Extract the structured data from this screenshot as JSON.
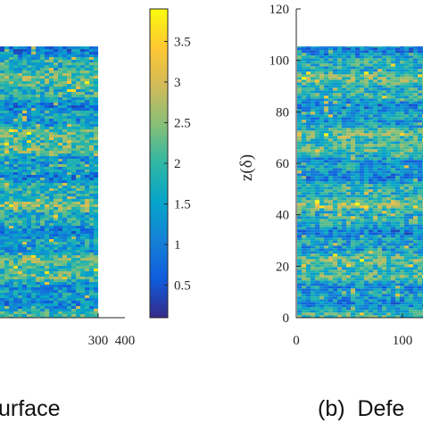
{
  "chart_data": [
    {
      "type": "heatmap",
      "panel": "left",
      "caption": "urface",
      "x_ticks": [
        300,
        400
      ],
      "colorbar": {
        "ticks": [
          0.5,
          1,
          1.5,
          2,
          2.5,
          3,
          3.5
        ],
        "range": [
          0.1,
          3.9
        ],
        "colormap": "parula"
      }
    },
    {
      "type": "heatmap",
      "panel": "right",
      "caption": "(b)  Defe",
      "ylabel": "z(δ)",
      "x_ticks": [
        0,
        100
      ],
      "y_ticks": [
        0,
        20,
        40,
        60,
        80,
        100,
        120
      ],
      "ylim": [
        0,
        120
      ],
      "data_extent": {
        "x": [
          0,
          140
        ],
        "y": [
          0,
          106
        ]
      }
    }
  ],
  "colors": {
    "parula": [
      "#352a87",
      "#0f5cdd",
      "#1481d6",
      "#06a4ca",
      "#2eb7a4",
      "#87bf77",
      "#d1bb59",
      "#fec832",
      "#f9fb0e"
    ],
    "axis": "#262626"
  }
}
